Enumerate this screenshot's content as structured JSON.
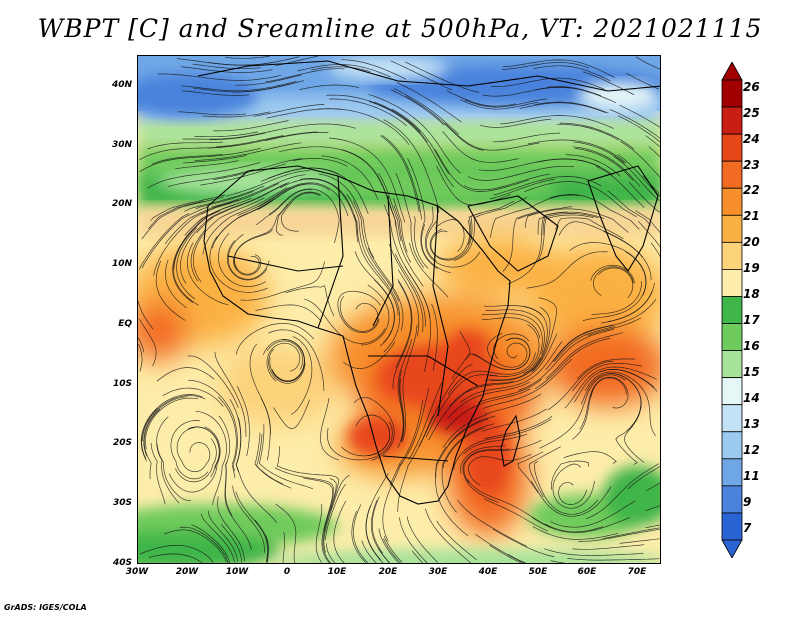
{
  "title": "WBPT [C] and Sreamline at 500hPa, VT: 2021021115",
  "credit": "GrADS: IGES/COLA",
  "map": {
    "lon_labels": [
      "30W",
      "20W",
      "10W",
      "0",
      "10E",
      "20E",
      "30E",
      "40E",
      "50E",
      "60E",
      "70E"
    ],
    "lat_labels": [
      "40N",
      "30N",
      "20N",
      "10N",
      "EQ",
      "10S",
      "20S",
      "30S",
      "40S"
    ]
  },
  "colorbar": {
    "labels": [
      "26",
      "25",
      "24",
      "23",
      "22",
      "21",
      "20",
      "19",
      "18",
      "17",
      "16",
      "15",
      "14",
      "13",
      "12",
      "11",
      "9",
      "7"
    ],
    "colors": [
      "#a00000",
      "#c81e14",
      "#e8471a",
      "#f26b22",
      "#f7902a",
      "#fbb043",
      "#fcd27a",
      "#fdedaa",
      "#3fb54a",
      "#6fcb5c",
      "#a6e29a",
      "#e6f7f7",
      "#c4e2f5",
      "#9cc9ef",
      "#6fa6e6",
      "#4a82dc",
      "#2a63d3"
    ]
  }
}
